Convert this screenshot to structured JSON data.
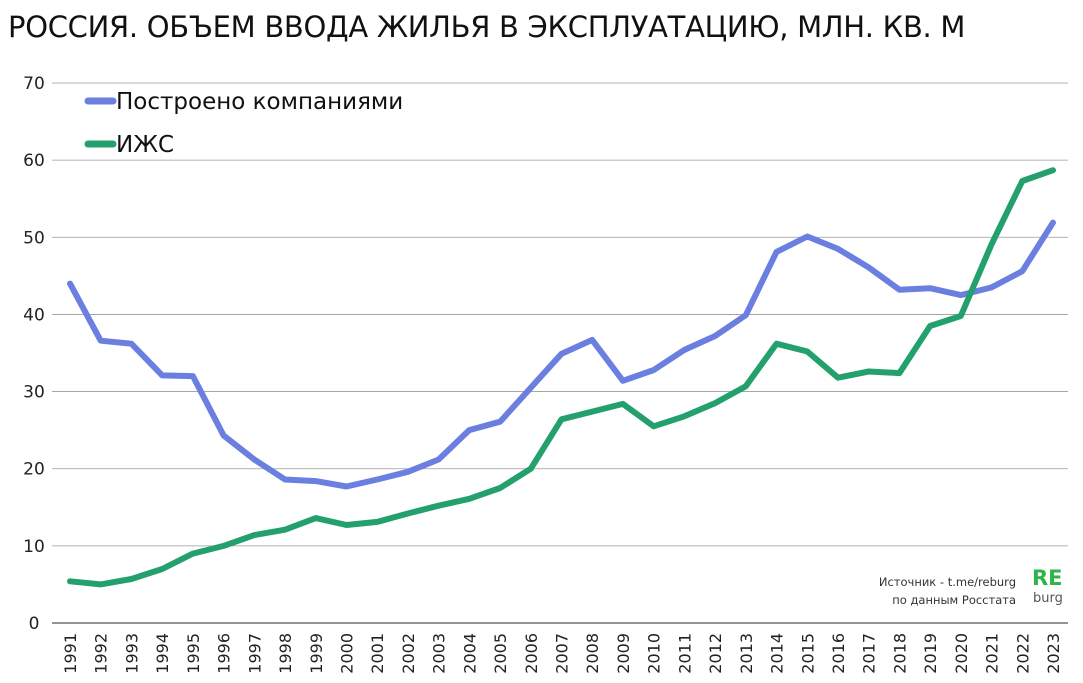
{
  "title": "РОССИЯ. ОБЪЕМ ВВОДА  ЖИЛЬЯ В ЭКСПЛУАТАЦИЮ, МЛН. КВ. М",
  "source": {
    "line1": "Источник - t.me/reburg",
    "line2": "по данным Росстата"
  },
  "logo": {
    "top": "RE",
    "bottom": "burg",
    "color": "#2fb34a"
  },
  "chart_data": {
    "type": "line",
    "x": [
      "1991",
      "1992",
      "1993",
      "1994",
      "1995",
      "1996",
      "1997",
      "1998",
      "1999",
      "2000",
      "2001",
      "2002",
      "2003",
      "2004",
      "2005",
      "2006",
      "2007",
      "2008",
      "2009",
      "2010",
      "2011",
      "2012",
      "2013",
      "2014",
      "2015",
      "2016",
      "2017",
      "2018",
      "2019",
      "2020",
      "2021",
      "2022",
      "2023"
    ],
    "ylim": [
      0,
      70
    ],
    "yticks": [
      0,
      10,
      20,
      30,
      40,
      50,
      60,
      70
    ],
    "grid": true,
    "legend_position": "top-left",
    "series": [
      {
        "name": "Построено компаниями",
        "color": "#6b7fe0",
        "values": [
          44.0,
          36.6,
          36.2,
          32.1,
          32.0,
          24.3,
          21.2,
          18.6,
          18.4,
          17.7,
          18.6,
          19.6,
          21.2,
          25.0,
          26.1,
          30.5,
          34.9,
          36.7,
          31.4,
          32.8,
          35.4,
          37.2,
          39.9,
          48.1,
          50.1,
          48.5,
          46.1,
          43.2,
          43.4,
          42.5,
          43.5,
          45.6,
          51.9
        ]
      },
      {
        "name": "ИЖС",
        "color": "#23a06c",
        "values": [
          5.4,
          5.0,
          5.7,
          7.0,
          9.0,
          10.0,
          11.4,
          12.1,
          13.6,
          12.7,
          13.1,
          14.2,
          15.2,
          16.1,
          17.5,
          20.0,
          26.4,
          27.4,
          28.4,
          25.5,
          26.8,
          28.5,
          30.7,
          36.2,
          35.2,
          31.8,
          32.6,
          32.4,
          38.5,
          39.8,
          49.1,
          57.3,
          58.7
        ]
      }
    ]
  }
}
